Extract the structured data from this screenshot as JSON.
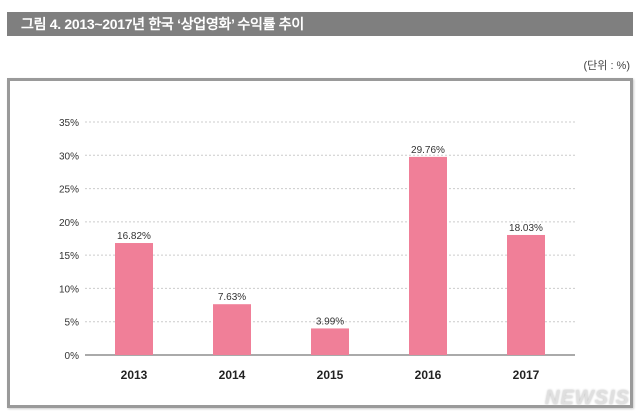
{
  "header": {
    "title": "그림 4. 2013~2017년 한국 ‘상업영화’ 수익률 추이"
  },
  "unit_label": "(단위 : %)",
  "watermark": "NEWSIS",
  "chart_data": {
    "type": "bar",
    "title": "그림 4. 2013~2017년 한국 ‘상업영화’ 수익률 추이",
    "categories": [
      "2013",
      "2014",
      "2015",
      "2016",
      "2017"
    ],
    "values": [
      16.82,
      7.63,
      3.99,
      29.76,
      18.03
    ],
    "data_labels": [
      "16.82%",
      "7.63%",
      "3.99%",
      "29.76%",
      "18.03%"
    ],
    "yticks": [
      "0%",
      "5%",
      "10%",
      "15%",
      "20%",
      "25%",
      "30%",
      "35%"
    ],
    "ylim": [
      0,
      35
    ],
    "grid": true,
    "bar_color": "#f07f98"
  }
}
